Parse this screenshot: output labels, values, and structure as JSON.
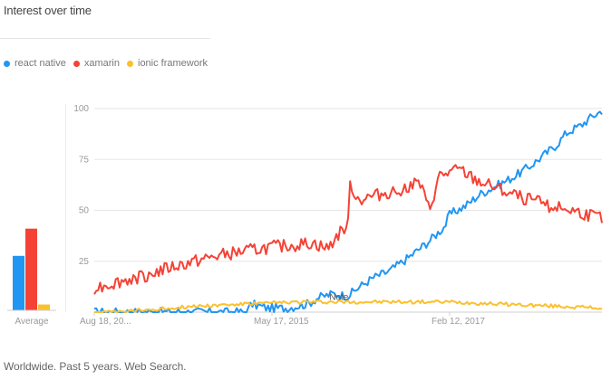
{
  "chart_title": "Interest over time",
  "footer": "Worldwide. Past 5 years. Web Search.",
  "legend": [
    {
      "label": "react native",
      "color": "#2196f3"
    },
    {
      "label": "xamarin",
      "color": "#f44336"
    },
    {
      "label": "ionic framework",
      "color": "#fbc02d"
    }
  ],
  "chart_data": {
    "type": "line",
    "title": "Interest over time",
    "ylim": [
      0,
      100
    ],
    "y_ticks": [
      25,
      50,
      75,
      100
    ],
    "x_tick_labels": [
      {
        "label": "Aug 18, 20...",
        "pos": 0.0
      },
      {
        "label": "May 17, 2015",
        "pos": 0.35
      },
      {
        "label": "Feb 12, 2017",
        "pos": 0.7
      }
    ],
    "annotation": {
      "label": "Note",
      "pos": 0.47
    },
    "grid": true,
    "legend_position": "top-left",
    "average": {
      "label": "Average",
      "values": {
        "react native": 28,
        "xamarin": 42,
        "ionic framework": 3
      }
    },
    "x_range": [
      0,
      1
    ],
    "series": [
      {
        "name": "react native",
        "color": "#2196f3",
        "anchors": [
          [
            0.0,
            0
          ],
          [
            0.2,
            0
          ],
          [
            0.3,
            0
          ],
          [
            0.31,
            4
          ],
          [
            0.34,
            2
          ],
          [
            0.38,
            2
          ],
          [
            0.42,
            4
          ],
          [
            0.44,
            7
          ],
          [
            0.47,
            9
          ],
          [
            0.5,
            8
          ],
          [
            0.52,
            12
          ],
          [
            0.55,
            17
          ],
          [
            0.58,
            20
          ],
          [
            0.62,
            27
          ],
          [
            0.66,
            35
          ],
          [
            0.69,
            42
          ],
          [
            0.7,
            48
          ],
          [
            0.73,
            52
          ],
          [
            0.76,
            58
          ],
          [
            0.8,
            63
          ],
          [
            0.83,
            67
          ],
          [
            0.86,
            72
          ],
          [
            0.88,
            76
          ],
          [
            0.91,
            82
          ],
          [
            0.93,
            88
          ],
          [
            0.96,
            92
          ],
          [
            0.98,
            96
          ],
          [
            1.0,
            99
          ]
        ],
        "noise": 2.2
      },
      {
        "name": "xamarin",
        "color": "#f44336",
        "anchors": [
          [
            0.0,
            12
          ],
          [
            0.05,
            15
          ],
          [
            0.1,
            18
          ],
          [
            0.15,
            22
          ],
          [
            0.2,
            25
          ],
          [
            0.25,
            28
          ],
          [
            0.3,
            30
          ],
          [
            0.35,
            32
          ],
          [
            0.4,
            33
          ],
          [
            0.43,
            34
          ],
          [
            0.46,
            31
          ],
          [
            0.48,
            38
          ],
          [
            0.5,
            43
          ],
          [
            0.5,
            65
          ],
          [
            0.52,
            55
          ],
          [
            0.55,
            57
          ],
          [
            0.6,
            60
          ],
          [
            0.64,
            64
          ],
          [
            0.66,
            50
          ],
          [
            0.68,
            67
          ],
          [
            0.72,
            70
          ],
          [
            0.75,
            65
          ],
          [
            0.78,
            62
          ],
          [
            0.82,
            58
          ],
          [
            0.86,
            55
          ],
          [
            0.9,
            52
          ],
          [
            0.94,
            50
          ],
          [
            0.97,
            48
          ],
          [
            1.0,
            46
          ]
        ],
        "noise": 3.2
      },
      {
        "name": "ionic framework",
        "color": "#fbc02d",
        "anchors": [
          [
            0.0,
            0
          ],
          [
            0.05,
            0
          ],
          [
            0.1,
            1
          ],
          [
            0.15,
            2
          ],
          [
            0.2,
            3
          ],
          [
            0.3,
            4
          ],
          [
            0.4,
            5
          ],
          [
            0.5,
            5
          ],
          [
            0.6,
            5
          ],
          [
            0.7,
            5
          ],
          [
            0.8,
            4
          ],
          [
            0.9,
            3
          ],
          [
            1.0,
            2
          ]
        ],
        "noise": 0.9
      }
    ]
  }
}
